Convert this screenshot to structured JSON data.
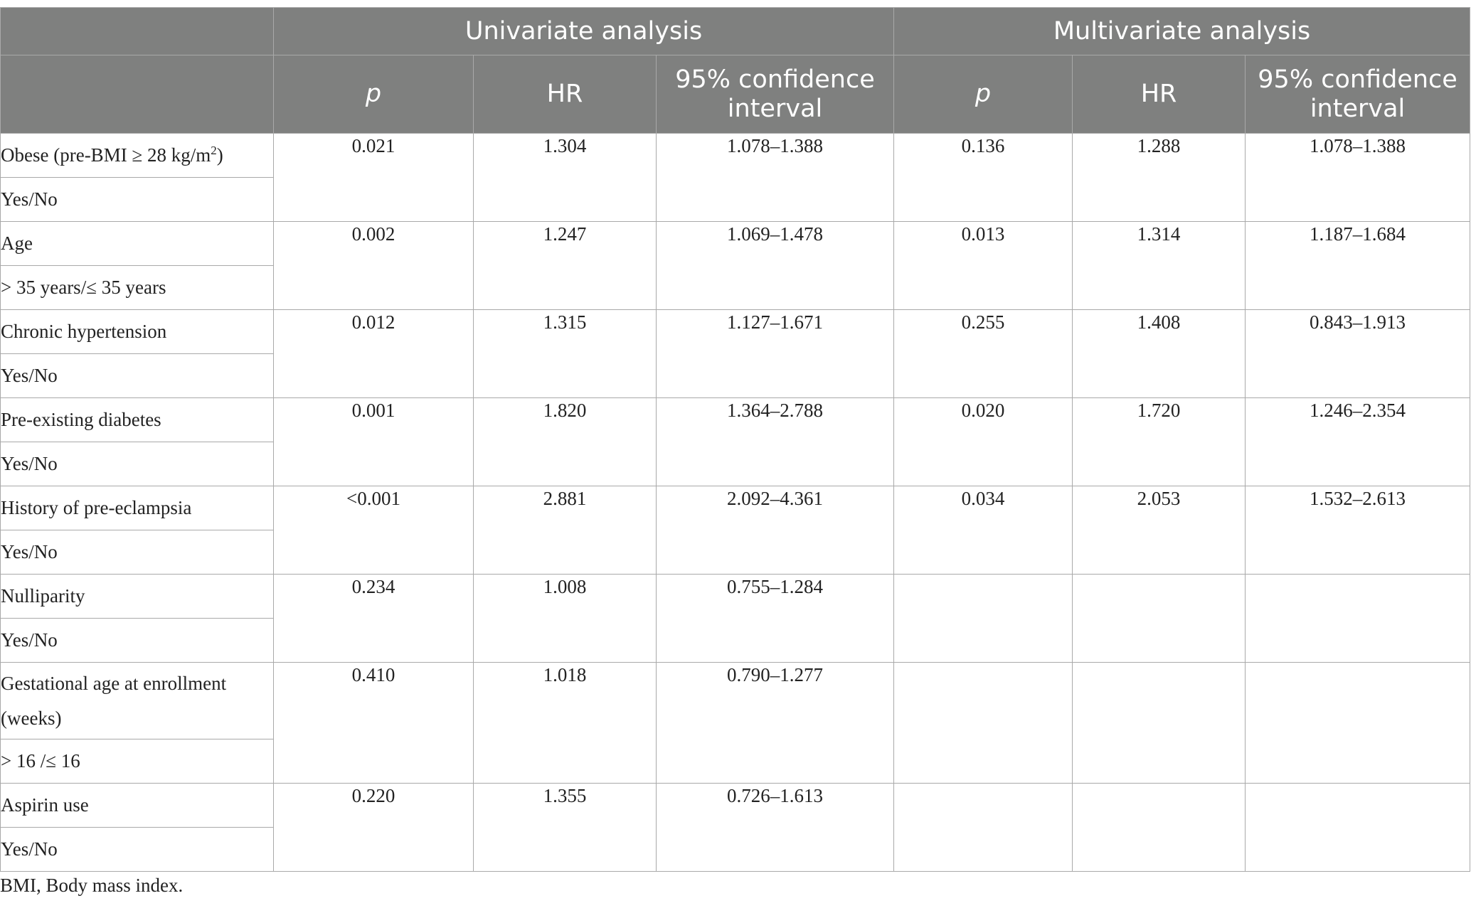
{
  "header": {
    "group_univariate": "Univariate analysis",
    "group_multivariate": "Multivariate analysis",
    "col_p": "p",
    "col_hr": "HR",
    "col_ci": "95% confidence interval"
  },
  "rows": [
    {
      "var": "Obese (pre-BMI ≥ 28 kg/m",
      "var_sup": "2",
      "var_tail": ")",
      "sub": "Yes/No",
      "u_p": "0.021",
      "u_hr": "1.304",
      "u_ci": "1.078–1.388",
      "m_p": "0.136",
      "m_hr": "1.288",
      "m_ci": "1.078–1.388"
    },
    {
      "var": "Age",
      "sub": "> 35 years/≤ 35 years",
      "u_p": "0.002",
      "u_hr": "1.247",
      "u_ci": "1.069–1.478",
      "m_p": "0.013",
      "m_hr": "1.314",
      "m_ci": "1.187–1.684"
    },
    {
      "var": "Chronic hypertension",
      "sub": "Yes/No",
      "u_p": "0.012",
      "u_hr": "1.315",
      "u_ci": "1.127–1.671",
      "m_p": "0.255",
      "m_hr": "1.408",
      "m_ci": "0.843–1.913"
    },
    {
      "var": "Pre-existing diabetes",
      "sub": "Yes/No",
      "u_p": "0.001",
      "u_hr": "1.820",
      "u_ci": "1.364–2.788",
      "m_p": "0.020",
      "m_hr": "1.720",
      "m_ci": "1.246–2.354"
    },
    {
      "var": "History of pre-eclampsia",
      "sub": "Yes/No",
      "u_p": "<0.001",
      "u_hr": "2.881",
      "u_ci": "2.092–4.361",
      "m_p": "0.034",
      "m_hr": "2.053",
      "m_ci": "1.532–2.613"
    },
    {
      "var": "Nulliparity",
      "sub": "Yes/No",
      "u_p": "0.234",
      "u_hr": "1.008",
      "u_ci": "0.755–1.284",
      "m_p": "",
      "m_hr": "",
      "m_ci": ""
    },
    {
      "var": "Gestational age at enrollment (weeks)",
      "sub": "> 16 /≤ 16",
      "u_p": "0.410",
      "u_hr": "1.018",
      "u_ci": "0.790–1.277",
      "m_p": "",
      "m_hr": "",
      "m_ci": ""
    },
    {
      "var": "Aspirin use",
      "sub": "Yes/No",
      "u_p": "0.220",
      "u_hr": "1.355",
      "u_ci": "0.726–1.613",
      "m_p": "",
      "m_hr": "",
      "m_ci": ""
    }
  ],
  "footnote": "BMI, Body mass index."
}
